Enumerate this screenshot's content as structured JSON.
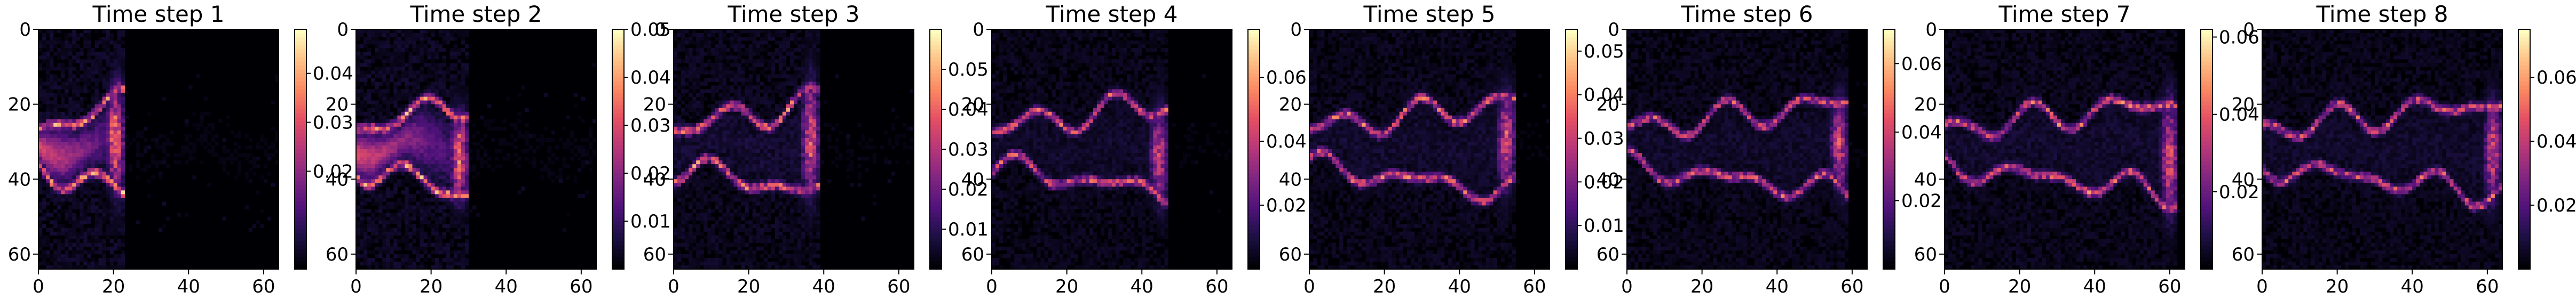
{
  "chart_data": [
    {
      "type": "heatmap",
      "title": "Time step 1",
      "xlim": [
        0,
        64
      ],
      "ylim": [
        64,
        0
      ],
      "xticks": [
        "0",
        "20",
        "40",
        "60"
      ],
      "yticks": [
        "0",
        "20",
        "40",
        "60"
      ],
      "colorbar": {
        "min": 0.0,
        "max": 0.049,
        "ticks": [
          "0.02",
          "0.03",
          "0.04"
        ],
        "tick_values": [
          0.02,
          0.03,
          0.04
        ]
      },
      "colormap": "magma",
      "front_x": [
        18,
        22
      ],
      "intensity": 1.0
    },
    {
      "type": "heatmap",
      "title": "Time step 2",
      "xlim": [
        0,
        64
      ],
      "ylim": [
        64,
        0
      ],
      "xticks": [
        "0",
        "20",
        "40",
        "60"
      ],
      "yticks": [
        "0",
        "20",
        "40",
        "60"
      ],
      "colorbar": {
        "min": 0.0,
        "max": 0.05,
        "ticks": [
          "0.01",
          "0.02",
          "0.03",
          "0.04",
          "0.05"
        ],
        "tick_values": [
          0.01,
          0.02,
          0.03,
          0.04,
          0.05
        ]
      },
      "colormap": "magma",
      "front_x": [
        24,
        30
      ],
      "intensity": 1.0
    },
    {
      "type": "heatmap",
      "title": "Time step 3",
      "xlim": [
        0,
        64
      ],
      "ylim": [
        64,
        0
      ],
      "xticks": [
        "0",
        "20",
        "40",
        "60"
      ],
      "yticks": [
        "0",
        "20",
        "40",
        "60"
      ],
      "colorbar": {
        "min": 0.0,
        "max": 0.06,
        "ticks": [
          "0.01",
          "0.02",
          "0.03",
          "0.04",
          "0.05"
        ],
        "tick_values": [
          0.01,
          0.02,
          0.03,
          0.04,
          0.05
        ]
      },
      "colormap": "magma",
      "front_x": [
        32,
        40
      ],
      "intensity": 0.9
    },
    {
      "type": "heatmap",
      "title": "Time step 4",
      "xlim": [
        0,
        64
      ],
      "ylim": [
        64,
        0
      ],
      "xticks": [
        "0",
        "20",
        "40",
        "60"
      ],
      "yticks": [
        "0",
        "20",
        "40",
        "60"
      ],
      "colorbar": {
        "min": 0.0,
        "max": 0.075,
        "ticks": [
          "0.02",
          "0.04",
          "0.06"
        ],
        "tick_values": [
          0.02,
          0.04,
          0.06
        ]
      },
      "colormap": "magma",
      "front_x": [
        40,
        48
      ],
      "intensity": 0.8
    },
    {
      "type": "heatmap",
      "title": "Time step 5",
      "xlim": [
        0,
        64
      ],
      "ylim": [
        64,
        0
      ],
      "xticks": [
        "0",
        "20",
        "40",
        "60"
      ],
      "yticks": [
        "0",
        "20",
        "40",
        "60"
      ],
      "colorbar": {
        "min": 0.0,
        "max": 0.055,
        "ticks": [
          "0.01",
          "0.02",
          "0.03",
          "0.04",
          "0.05"
        ],
        "tick_values": [
          0.01,
          0.02,
          0.03,
          0.04,
          0.05
        ]
      },
      "colormap": "magma",
      "front_x": [
        48,
        56
      ],
      "intensity": 0.85
    },
    {
      "type": "heatmap",
      "title": "Time step 6",
      "xlim": [
        0,
        64
      ],
      "ylim": [
        64,
        0
      ],
      "xticks": [
        "0",
        "20",
        "40",
        "60"
      ],
      "yticks": [
        "0",
        "20",
        "40",
        "60"
      ],
      "colorbar": {
        "min": 0.0,
        "max": 0.07,
        "ticks": [
          "0.02",
          "0.04",
          "0.06"
        ],
        "tick_values": [
          0.02,
          0.04,
          0.06
        ]
      },
      "colormap": "magma",
      "front_x": [
        52,
        60
      ],
      "intensity": 0.8
    },
    {
      "type": "heatmap",
      "title": "Time step 7",
      "xlim": [
        0,
        64
      ],
      "ylim": [
        64,
        0
      ],
      "xticks": [
        "0",
        "20",
        "40",
        "60"
      ],
      "yticks": [
        "0",
        "20",
        "40",
        "60"
      ],
      "colorbar": {
        "min": 0.0,
        "max": 0.062,
        "ticks": [
          "0.02",
          "0.04",
          "0.06"
        ],
        "tick_values": [
          0.02,
          0.04,
          0.06
        ]
      },
      "colormap": "magma",
      "front_x": [
        56,
        63
      ],
      "intensity": 0.85
    },
    {
      "type": "heatmap",
      "title": "Time step 8",
      "xlim": [
        0,
        64
      ],
      "ylim": [
        64,
        0
      ],
      "xticks": [
        "0",
        "20",
        "40",
        "60"
      ],
      "yticks": [
        "0",
        "20",
        "40",
        "60"
      ],
      "colorbar": {
        "min": 0.0,
        "max": 0.075,
        "ticks": [
          "0.02",
          "0.04",
          "0.06"
        ],
        "tick_values": [
          0.02,
          0.04,
          0.06
        ]
      },
      "colormap": "magma",
      "front_x": [
        58,
        64
      ],
      "intensity": 0.8
    }
  ]
}
